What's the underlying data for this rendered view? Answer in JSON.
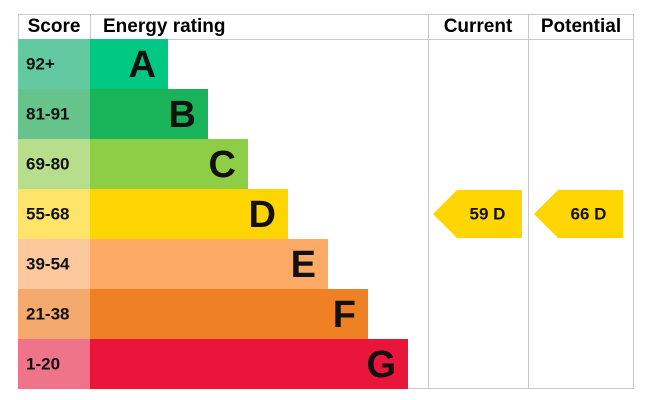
{
  "header": {
    "score": "Score",
    "rating": "Energy rating",
    "current": "Current",
    "potential": "Potential"
  },
  "bands": [
    {
      "score": "92+",
      "letter": "A",
      "color": "#00c781",
      "score_color": "#63c9a0"
    },
    {
      "score": "81-91",
      "letter": "B",
      "color": "#19b459",
      "score_color": "#66c38c"
    },
    {
      "score": "69-80",
      "letter": "C",
      "color": "#8dce46",
      "score_color": "#b6de8c"
    },
    {
      "score": "55-68",
      "letter": "D",
      "color": "#ffd500",
      "score_color": "#ffe46a"
    },
    {
      "score": "39-54",
      "letter": "E",
      "color": "#fcaa65",
      "score_color": "#fcc89c"
    },
    {
      "score": "21-38",
      "letter": "F",
      "color": "#ef8023",
      "score_color": "#f4a96d"
    },
    {
      "score": "1-20",
      "letter": "G",
      "color": "#e9153b",
      "score_color": "#ef7389"
    }
  ],
  "current": {
    "label": "59 D",
    "band": 3,
    "color": "#ffd500"
  },
  "potential": {
    "label": "66 D",
    "band": 3,
    "color": "#ffd500"
  }
}
